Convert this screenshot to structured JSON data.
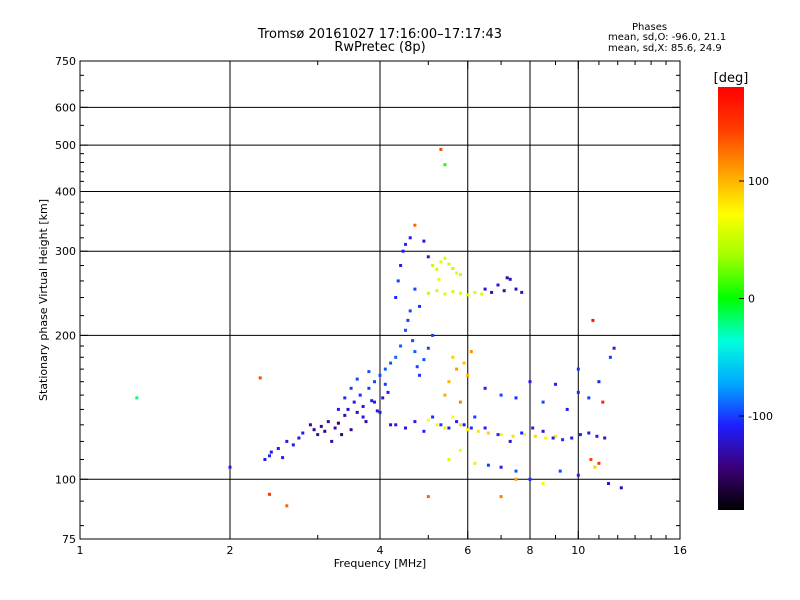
{
  "chart_data": {
    "type": "scatter",
    "title": "Tromsø 20161027 17:16:00–17:17:43",
    "subtitle": "RwPretec (8p)",
    "xlabel": "Frequency [MHz]",
    "ylabel": "Stationary phase Virtual Height [km]",
    "x_scale": "log",
    "y_scale": "log",
    "xlim": [
      1,
      16
    ],
    "ylim": [
      75,
      750
    ],
    "x_ticks": [
      1,
      2,
      4,
      6,
      8,
      10,
      16
    ],
    "x_tick_labels": [
      "1",
      "2",
      "4",
      "6",
      "8",
      "10",
      "16"
    ],
    "y_ticks": [
      75,
      100,
      200,
      300,
      400,
      500,
      600,
      750
    ],
    "y_tick_labels": [
      "75",
      "100",
      "200",
      "300",
      "400",
      "500",
      "600",
      "750"
    ],
    "grid": true,
    "stats": {
      "heading": "Phases",
      "line_o": "mean, sd,O: -96.0, 21.1",
      "line_x": "mean, sd,X:  85.6, 24.9"
    },
    "colorbar": {
      "label": "[deg]",
      "range": [
        -180,
        180
      ],
      "ticks": [
        100,
        0,
        -100
      ],
      "tick_labels": [
        "100",
        "0",
        "-100"
      ],
      "colors": [
        "#000000",
        "#3c0078",
        "#1e1eff",
        "#00aaff",
        "#00ffdc",
        "#00ff00",
        "#a0ff00",
        "#ffff00",
        "#ffa000",
        "#ff3c00",
        "#ff0000"
      ]
    },
    "series": [
      {
        "values": [
          [
            1.3,
            148,
            -20
          ],
          [
            2.0,
            106,
            -110
          ],
          [
            2.35,
            110,
            -112
          ],
          [
            2.4,
            112,
            -105
          ],
          [
            2.42,
            114,
            -118
          ],
          [
            2.5,
            116,
            -112
          ],
          [
            2.55,
            111,
            -108
          ],
          [
            2.6,
            120,
            -114
          ],
          [
            2.68,
            118,
            -110
          ],
          [
            2.75,
            122,
            -118
          ],
          [
            2.8,
            125,
            -112
          ],
          [
            2.9,
            130,
            -135
          ],
          [
            2.95,
            127,
            -140
          ],
          [
            3.0,
            124,
            -130
          ],
          [
            3.05,
            129,
            -138
          ],
          [
            3.1,
            126,
            -142
          ],
          [
            3.15,
            132,
            -128
          ],
          [
            3.2,
            120,
            -135
          ],
          [
            3.25,
            128,
            -130
          ],
          [
            3.3,
            131,
            -150
          ],
          [
            3.35,
            124,
            -145
          ],
          [
            3.4,
            136,
            -125
          ],
          [
            3.45,
            140,
            -120
          ],
          [
            3.5,
            127,
            -138
          ],
          [
            3.55,
            145,
            -110
          ],
          [
            3.6,
            138,
            -128
          ],
          [
            3.65,
            150,
            -105
          ],
          [
            3.7,
            142,
            -115
          ],
          [
            3.75,
            132,
            -132
          ],
          [
            3.8,
            155,
            -100
          ],
          [
            3.85,
            146,
            -112
          ],
          [
            3.9,
            160,
            -98
          ],
          [
            3.95,
            139,
            -120
          ],
          [
            4.0,
            165,
            -95
          ],
          [
            4.05,
            148,
            -118
          ],
          [
            4.1,
            170,
            -92
          ],
          [
            4.15,
            152,
            -110
          ],
          [
            4.2,
            130,
            -125
          ],
          [
            3.3,
            140,
            -110
          ],
          [
            3.4,
            148,
            -105
          ],
          [
            3.5,
            155,
            -100
          ],
          [
            3.6,
            162,
            -98
          ],
          [
            3.7,
            135,
            -115
          ],
          [
            3.8,
            168,
            -96
          ],
          [
            3.9,
            145,
            -108
          ],
          [
            4.0,
            138,
            -112
          ],
          [
            4.1,
            158,
            -100
          ],
          [
            4.2,
            175,
            -94
          ],
          [
            4.3,
            180,
            -90
          ],
          [
            4.4,
            190,
            -92
          ],
          [
            4.5,
            205,
            -95
          ],
          [
            4.55,
            215,
            -100
          ],
          [
            4.6,
            225,
            -98
          ],
          [
            4.65,
            195,
            -96
          ],
          [
            4.7,
            185,
            -92
          ],
          [
            4.75,
            172,
            -97
          ],
          [
            4.8,
            165,
            -102
          ],
          [
            4.9,
            178,
            -95
          ],
          [
            5.0,
            188,
            -98
          ],
          [
            5.1,
            200,
            -100
          ],
          [
            4.3,
            240,
            -105
          ],
          [
            4.35,
            260,
            -100
          ],
          [
            4.4,
            280,
            -108
          ],
          [
            4.45,
            300,
            -110
          ],
          [
            4.5,
            310,
            -105
          ],
          [
            4.6,
            320,
            -112
          ],
          [
            4.7,
            250,
            -98
          ],
          [
            4.8,
            230,
            -102
          ],
          [
            4.9,
            315,
            -120
          ],
          [
            5.0,
            292,
            -115
          ],
          [
            4.3,
            130,
            -110
          ],
          [
            4.5,
            128,
            -115
          ],
          [
            4.7,
            132,
            -112
          ],
          [
            4.9,
            126,
            -108
          ],
          [
            5.1,
            135,
            -105
          ],
          [
            5.3,
            130,
            -100
          ],
          [
            5.5,
            128,
            -110
          ],
          [
            5.7,
            132,
            -108
          ],
          [
            5.9,
            130,
            -112
          ],
          [
            6.1,
            128,
            -105
          ],
          [
            5.0,
            133,
            70
          ],
          [
            5.2,
            130,
            75
          ],
          [
            5.4,
            128,
            80
          ],
          [
            5.6,
            135,
            72
          ],
          [
            5.8,
            130,
            85
          ],
          [
            6.0,
            127,
            78
          ],
          [
            6.3,
            126,
            82
          ],
          [
            6.6,
            125,
            90
          ],
          [
            7.0,
            124,
            76
          ],
          [
            7.4,
            123,
            84
          ],
          [
            7.8,
            124,
            70
          ],
          [
            8.2,
            123,
            88
          ],
          [
            8.6,
            122,
            75
          ],
          [
            9.0,
            123,
            80
          ],
          [
            5.1,
            280,
            50
          ],
          [
            5.2,
            275,
            55
          ],
          [
            5.3,
            285,
            60
          ],
          [
            5.4,
            290,
            58
          ],
          [
            5.5,
            282,
            52
          ],
          [
            5.6,
            276,
            48
          ],
          [
            5.7,
            270,
            62
          ],
          [
            5.8,
            268,
            55
          ],
          [
            5.25,
            262,
            65
          ],
          [
            5.0,
            245,
            48
          ],
          [
            5.2,
            248,
            52
          ],
          [
            5.4,
            244,
            58
          ],
          [
            5.6,
            247,
            55
          ],
          [
            5.8,
            245,
            60
          ],
          [
            6.0,
            243,
            50
          ],
          [
            6.2,
            246,
            57
          ],
          [
            6.4,
            244,
            53
          ],
          [
            6.5,
            250,
            -120
          ],
          [
            6.7,
            246,
            -125
          ],
          [
            6.9,
            255,
            -118
          ],
          [
            7.1,
            248,
            -130
          ],
          [
            7.3,
            262,
            -122
          ],
          [
            7.5,
            250,
            -128
          ],
          [
            7.7,
            246,
            -120
          ],
          [
            7.2,
            264,
            -135
          ],
          [
            6.2,
            135,
            -100
          ],
          [
            6.5,
            128,
            -110
          ],
          [
            6.9,
            124,
            -105
          ],
          [
            7.3,
            120,
            -115
          ],
          [
            7.7,
            125,
            -108
          ],
          [
            8.1,
            128,
            -112
          ],
          [
            8.5,
            126,
            -118
          ],
          [
            8.9,
            122,
            -110
          ],
          [
            9.3,
            121,
            -105
          ],
          [
            9.7,
            122,
            -112
          ],
          [
            10.1,
            124,
            -108
          ],
          [
            10.5,
            125,
            -115
          ],
          [
            10.9,
            123,
            -110
          ],
          [
            11.3,
            122,
            -118
          ],
          [
            6.5,
            155,
            -110
          ],
          [
            7.0,
            150,
            -100
          ],
          [
            7.5,
            148,
            -105
          ],
          [
            8.0,
            160,
            -115
          ],
          [
            8.5,
            145,
            -98
          ],
          [
            9.0,
            158,
            -108
          ],
          [
            9.5,
            140,
            -112
          ],
          [
            10.0,
            152,
            -105
          ],
          [
            10.5,
            148,
            -100
          ],
          [
            11.0,
            160,
            -108
          ],
          [
            5.5,
            110,
            60
          ],
          [
            5.8,
            115,
            70
          ],
          [
            6.2,
            108,
            80
          ],
          [
            6.6,
            107,
            -100
          ],
          [
            7.0,
            106,
            -110
          ],
          [
            7.5,
            104,
            -95
          ],
          [
            8.0,
            100,
            -105
          ],
          [
            8.5,
            98,
            65
          ],
          [
            9.2,
            104,
            -100
          ],
          [
            10.0,
            102,
            -110
          ],
          [
            10.8,
            106,
            90
          ],
          [
            11.5,
            98,
            -120
          ],
          [
            12.2,
            96,
            -130
          ],
          [
            5.5,
            160,
            100
          ],
          [
            5.7,
            170,
            110
          ],
          [
            5.9,
            175,
            95
          ],
          [
            5.4,
            150,
            105
          ],
          [
            5.8,
            145,
            120
          ],
          [
            6.0,
            165,
            100
          ],
          [
            5.6,
            180,
            90
          ],
          [
            6.1,
            185,
            115
          ],
          [
            2.3,
            163,
            140
          ],
          [
            2.4,
            93,
            150
          ],
          [
            2.6,
            88,
            130
          ],
          [
            4.7,
            340,
            130
          ],
          [
            5.3,
            490,
            140
          ],
          [
            5.4,
            455,
            5
          ],
          [
            10.7,
            215,
            170
          ],
          [
            11.2,
            145,
            160
          ],
          [
            11.6,
            180,
            -100
          ],
          [
            11.8,
            188,
            -110
          ],
          [
            10.6,
            110,
            140
          ],
          [
            11.0,
            108,
            150
          ],
          [
            10.0,
            170,
            -105
          ],
          [
            5.0,
            92,
            130
          ],
          [
            7.0,
            92,
            120
          ],
          [
            7.5,
            100,
            110
          ]
        ]
      }
    ]
  }
}
